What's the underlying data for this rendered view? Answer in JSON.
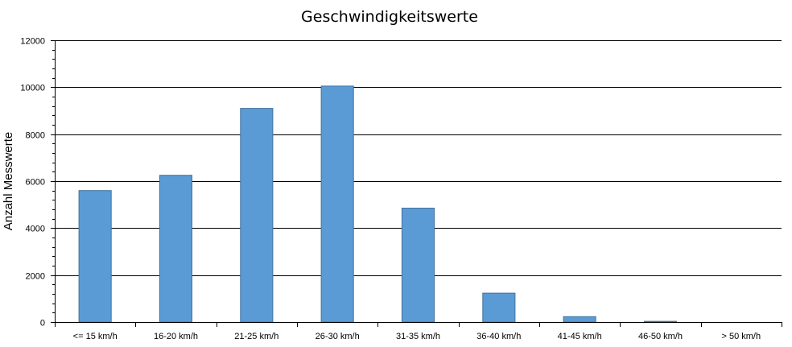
{
  "chart_data": {
    "type": "bar",
    "title": "Geschwindigkeitswerte",
    "xlabel": "",
    "ylabel": "Anzahl Messwerte",
    "categories": [
      "<= 15 km/h",
      "16-20 km/h",
      "21-25 km/h",
      "26-30 km/h",
      "31-35 km/h",
      "36-40 km/h",
      "41-45 km/h",
      "46-50 km/h",
      "> 50 km/h"
    ],
    "values": [
      5600,
      6250,
      9100,
      10050,
      4850,
      1230,
      230,
      30,
      0
    ],
    "ylim": [
      0,
      12000
    ],
    "yticks": [
      "0",
      "2000",
      "4000",
      "6000",
      "8000",
      "10000",
      "12000"
    ],
    "grid": true,
    "legend": "none",
    "colors": {
      "bar": "#5B9BD5",
      "bar_border": "#41719C",
      "grid": "#000000"
    }
  }
}
